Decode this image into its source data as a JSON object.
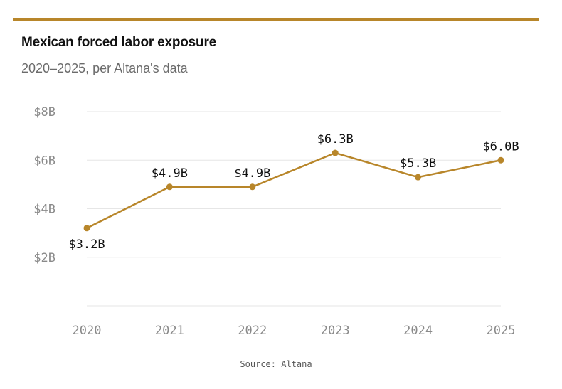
{
  "colors": {
    "accent": "#b8862a",
    "gridline": "#e6e6e6",
    "title": "#111111",
    "subtitle": "#6b6b6b"
  },
  "chart_data": {
    "type": "line",
    "title": "Mexican forced labor exposure",
    "subtitle": "2020–2025, per Altana's data",
    "xlabel": "",
    "ylabel": "",
    "categories": [
      "2020",
      "2021",
      "2022",
      "2023",
      "2024",
      "2025"
    ],
    "series": [
      {
        "values": [
          3.2,
          4.9,
          4.9,
          6.3,
          5.3,
          6.0
        ],
        "labels": [
          "$3.2B",
          "$4.9B",
          "$4.9B",
          "$6.3B",
          "$5.3B",
          "$6.0B"
        ]
      }
    ],
    "y_ticks": [
      {
        "value": 2,
        "label": "$2B"
      },
      {
        "value": 4,
        "label": "$4B"
      },
      {
        "value": 6,
        "label": "$6B"
      },
      {
        "value": 8,
        "label": "$8B"
      }
    ],
    "ylim": [
      0,
      8
    ],
    "grid": true,
    "legend": "none",
    "source": "Source: Altana"
  }
}
